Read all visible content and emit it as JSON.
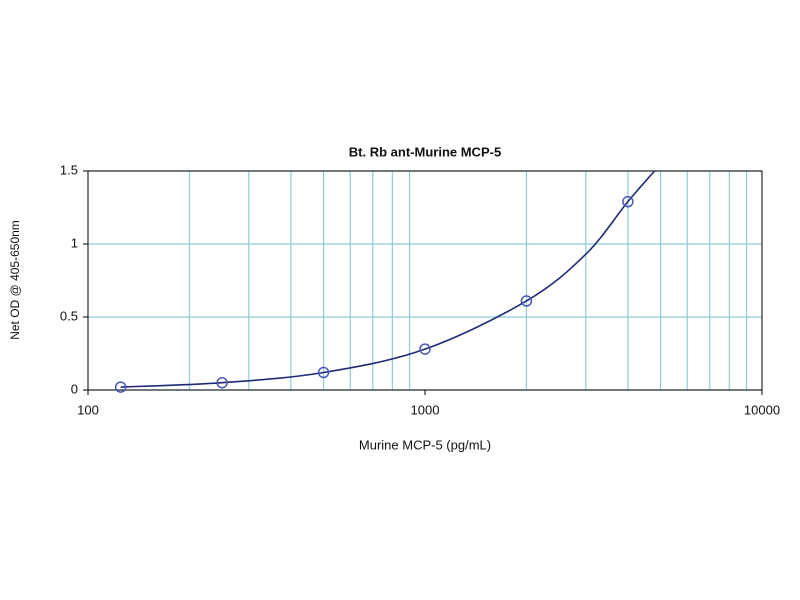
{
  "chart_data": {
    "type": "scatter",
    "title": "Bt. Rb ant-Murine MCP-5",
    "x_label": "Murine MCP-5 (pg/mL)",
    "y_label": "Net OD @ 405-650nm",
    "x": [
      125,
      250,
      500,
      1000,
      2000,
      4000
    ],
    "values": [
      0.02,
      0.05,
      0.12,
      0.28,
      0.61,
      1.29
    ],
    "color": "#4a56b8",
    "fit": {
      "x": [
        125,
        250,
        500,
        1000,
        2000,
        3000,
        4000,
        4800
      ],
      "values": [
        0.02,
        0.05,
        0.12,
        0.28,
        0.61,
        0.93,
        1.29,
        1.5
      ],
      "color": "#1f2a78"
    },
    "xscale": "log",
    "xlim": [
      100,
      10000
    ],
    "xticks": [
      100,
      1000,
      10000
    ],
    "x_minor_grid": [
      200,
      300,
      400,
      500,
      600,
      700,
      800,
      900,
      2000,
      3000,
      4000,
      5000,
      6000,
      7000,
      8000,
      9000
    ],
    "ylim": [
      0,
      1.5
    ],
    "yticks": [
      0,
      0.5,
      1,
      1.5
    ],
    "grid": true,
    "grid_color": "#8fcbd6"
  }
}
